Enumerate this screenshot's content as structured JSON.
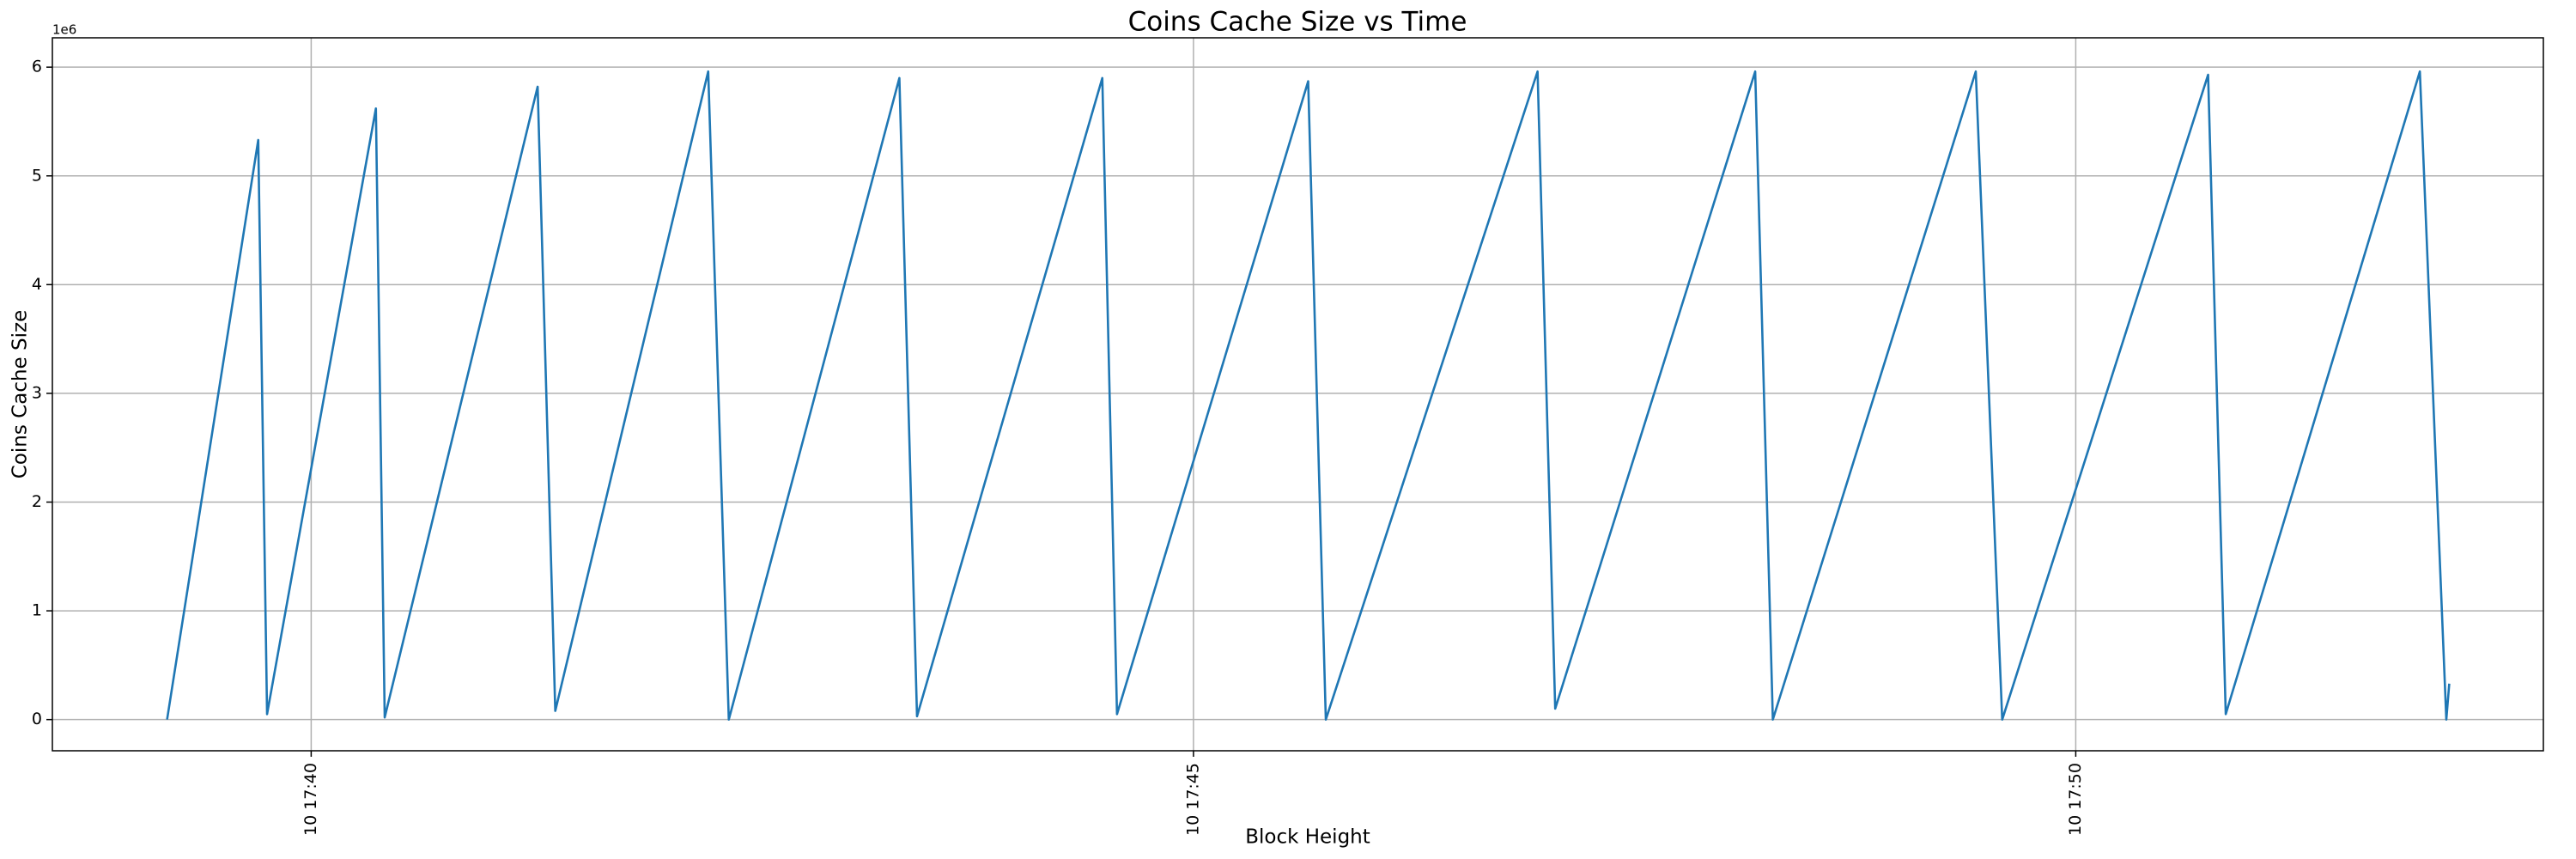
{
  "chart_data": {
    "type": "line",
    "title": "Coins Cache Size vs Time",
    "x_label": "Block Height",
    "y_label": "Coins Cache Size",
    "y_offset_label": "1e6",
    "x": [
      "10 17:39:11",
      "10 17:39:42",
      "10 17:39:45",
      "10 17:40:22",
      "10 17:40:25",
      "10 17:41:17",
      "10 17:41:23",
      "10 17:42:15",
      "10 17:42:22",
      "10 17:43:20",
      "10 17:43:26",
      "10 17:44:29",
      "10 17:44:34",
      "10 17:45:39",
      "10 17:45:45",
      "10 17:46:57",
      "10 17:47:03",
      "10 17:48:11",
      "10 17:48:17",
      "10 17:49:26",
      "10 17:49:35",
      "10 17:50:45",
      "10 17:50:51",
      "10 17:51:57",
      "10 17:52:06",
      "10 17:52:07"
    ],
    "series": [
      {
        "name": "Coins Cache Size",
        "color": "#1f77b4",
        "values": [
          0,
          5330000,
          50000,
          5620000,
          20000,
          5820000,
          80000,
          5960000,
          0,
          5900000,
          30000,
          5900000,
          50000,
          5870000,
          0,
          5960000,
          100000,
          5960000,
          0,
          5960000,
          0,
          5930000,
          50000,
          5960000,
          0,
          330000
        ]
      }
    ],
    "xlim": [
      "10 17:38:32",
      "10 17:52:39"
    ],
    "xticks": [
      "10 17:40",
      "10 17:45",
      "10 17:50"
    ],
    "ylim": [
      -287000,
      6270000
    ],
    "yticks": [
      {
        "value": 0,
        "label": "0"
      },
      {
        "value": 1000000,
        "label": "1"
      },
      {
        "value": 2000000,
        "label": "2"
      },
      {
        "value": 3000000,
        "label": "3"
      },
      {
        "value": 4000000,
        "label": "4"
      },
      {
        "value": 5000000,
        "label": "5"
      },
      {
        "value": 6000000,
        "label": "6"
      }
    ],
    "grid": true
  }
}
